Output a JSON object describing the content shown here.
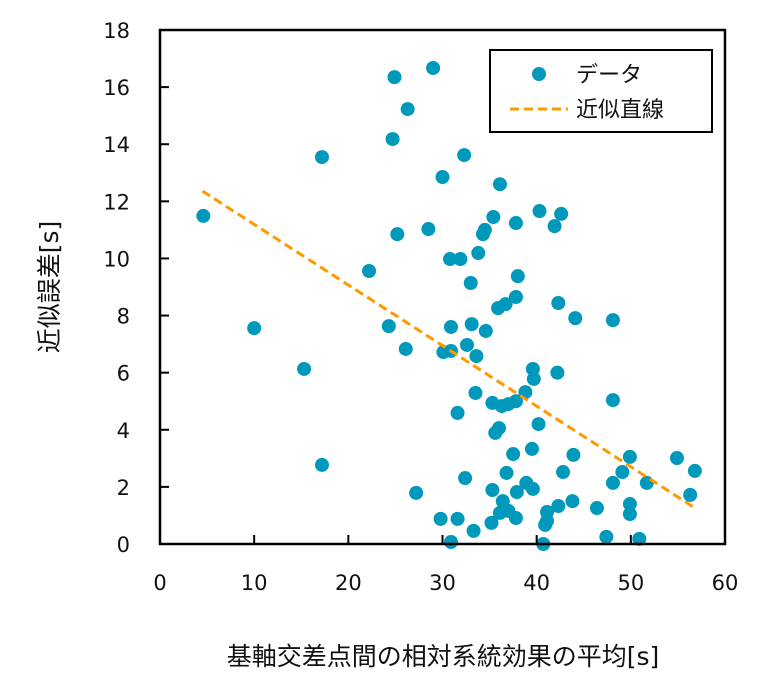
{
  "chart_data": {
    "type": "scatter",
    "title": "",
    "xlabel": "基軸交差点間の相対系統効果の平均[s]",
    "ylabel": "近似誤差[s]",
    "xlim": [
      0,
      60
    ],
    "ylim": [
      0,
      18
    ],
    "xticks": [
      "0",
      "10",
      "20",
      "30",
      "40",
      "50",
      "60"
    ],
    "yticks": [
      "0",
      "2",
      "4",
      "6",
      "8",
      "10",
      "12",
      "14",
      "16",
      "18"
    ],
    "grid": false,
    "legend": {
      "placement": "top-right",
      "entries": [
        "データ",
        "近似直線"
      ]
    },
    "colors": {
      "points": "#0099bb",
      "trend": "#ff9900"
    },
    "series": [
      {
        "name": "データ",
        "kind": "scatter",
        "points": [
          [
            4.6,
            11.49
          ],
          [
            10.0,
            7.56
          ],
          [
            15.3,
            6.13
          ],
          [
            17.2,
            13.55
          ],
          [
            17.2,
            2.77
          ],
          [
            22.2,
            9.56
          ],
          [
            24.3,
            7.63
          ],
          [
            24.7,
            14.18
          ],
          [
            24.9,
            16.35
          ],
          [
            25.2,
            10.85
          ],
          [
            26.1,
            6.83
          ],
          [
            26.3,
            15.23
          ],
          [
            27.2,
            1.79
          ],
          [
            28.5,
            11.03
          ],
          [
            29.0,
            16.67
          ],
          [
            29.8,
            0.88
          ],
          [
            30.0,
            12.85
          ],
          [
            30.1,
            6.72
          ],
          [
            30.9,
            6.76
          ],
          [
            30.8,
            9.98
          ],
          [
            30.9,
            7.6
          ],
          [
            30.9,
            0.07
          ],
          [
            31.6,
            4.59
          ],
          [
            31.6,
            0.88
          ],
          [
            31.9,
            9.98
          ],
          [
            32.3,
            13.62
          ],
          [
            32.4,
            2.31
          ],
          [
            32.6,
            6.97
          ],
          [
            33.0,
            9.14
          ],
          [
            33.1,
            7.7
          ],
          [
            33.3,
            0.46
          ],
          [
            33.6,
            6.58
          ],
          [
            33.5,
            5.29
          ],
          [
            33.8,
            10.19
          ],
          [
            34.3,
            10.85
          ],
          [
            34.5,
            11.0
          ],
          [
            34.6,
            7.46
          ],
          [
            35.4,
            11.45
          ],
          [
            35.3,
            4.94
          ],
          [
            35.3,
            1.89
          ],
          [
            35.2,
            0.74
          ],
          [
            35.6,
            3.89
          ],
          [
            36.0,
            4.06
          ],
          [
            35.9,
            8.26
          ],
          [
            36.1,
            12.6
          ],
          [
            36.1,
            1.09
          ],
          [
            36.3,
            4.83
          ],
          [
            36.4,
            1.5
          ],
          [
            36.7,
            8.4
          ],
          [
            36.8,
            2.49
          ],
          [
            37.0,
            4.9
          ],
          [
            37.0,
            1.16
          ],
          [
            37.5,
            3.15
          ],
          [
            37.8,
            11.24
          ],
          [
            37.8,
            8.65
          ],
          [
            37.8,
            5.0
          ],
          [
            37.8,
            0.91
          ],
          [
            37.9,
            1.82
          ],
          [
            38.0,
            9.38
          ],
          [
            38.8,
            5.32
          ],
          [
            38.9,
            2.14
          ],
          [
            39.5,
            3.33
          ],
          [
            39.6,
            6.13
          ],
          [
            39.7,
            5.78
          ],
          [
            39.6,
            1.93
          ],
          [
            40.2,
            4.2
          ],
          [
            40.3,
            11.66
          ],
          [
            40.7,
            0.0
          ],
          [
            40.9,
            0.67
          ],
          [
            41.1,
            0.81
          ],
          [
            41.1,
            1.12
          ],
          [
            41.9,
            11.13
          ],
          [
            42.2,
            6.0
          ],
          [
            42.3,
            8.44
          ],
          [
            42.3,
            1.33
          ],
          [
            42.6,
            11.56
          ],
          [
            42.8,
            2.52
          ],
          [
            43.8,
            1.5
          ],
          [
            43.9,
            3.12
          ],
          [
            44.1,
            7.91
          ],
          [
            46.4,
            1.26
          ],
          [
            47.4,
            0.25
          ],
          [
            48.1,
            7.84
          ],
          [
            48.1,
            5.04
          ],
          [
            48.1,
            2.14
          ],
          [
            49.1,
            2.52
          ],
          [
            49.9,
            3.05
          ],
          [
            49.9,
            1.4
          ],
          [
            49.9,
            1.05
          ],
          [
            50.9,
            0.18
          ],
          [
            51.7,
            2.14
          ],
          [
            54.9,
            3.01
          ],
          [
            56.3,
            1.72
          ],
          [
            56.8,
            2.56
          ]
        ]
      },
      {
        "name": "近似直線",
        "kind": "line",
        "points": [
          [
            4.5,
            12.36
          ],
          [
            57.0,
            1.22
          ]
        ]
      }
    ]
  }
}
